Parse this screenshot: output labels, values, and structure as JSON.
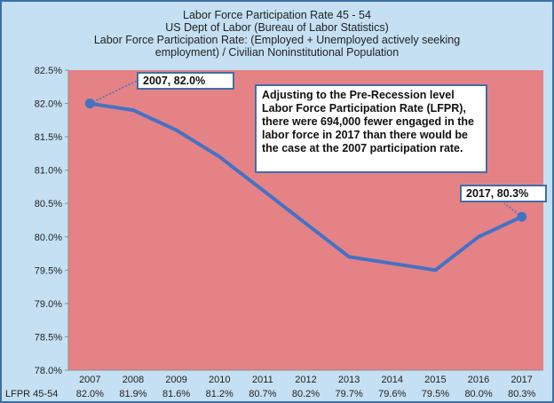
{
  "titles": {
    "line1": "Labor Force Participation Rate 45 - 54",
    "line2": "US Dept of Labor (Bureau of Labor Statistics)",
    "line3": "Labor Force Participation Rate: (Employed + Unemployed actively seeking",
    "line4": "employment) / Civilian Noninstitutional Population"
  },
  "callouts": {
    "start": "2007, 82.0%",
    "end": "2017, 80.3%",
    "annotation": "Adjusting to the Pre-Recession level Labor Force Participation Rate (LFPR), there were 694,000 fewer engaged in the labor force in 2017 than there would be the case at the 2007 participation rate."
  },
  "colors": {
    "frame": "#c5e0f3",
    "plot_area": "#e58285",
    "line": "#4472c4",
    "border": "#3f6fa8"
  },
  "chart_data": {
    "type": "line",
    "categories": [
      "2007",
      "2008",
      "2009",
      "2010",
      "2011",
      "2012",
      "2013",
      "2014",
      "2015",
      "2016",
      "2017"
    ],
    "series": [
      {
        "name": "LFPR 45-54",
        "values": [
          82.0,
          81.9,
          81.6,
          81.2,
          80.7,
          80.2,
          79.7,
          79.6,
          79.5,
          80.0,
          80.3
        ],
        "table_labels": [
          "82.0%",
          "81.9%",
          "81.6%",
          "81.2%",
          "80.7%",
          "80.2%",
          "79.7%",
          "79.6%",
          "79.5%",
          "80.0%",
          "80.3%"
        ]
      }
    ],
    "yticks": [
      "82.5%",
      "82.0%",
      "81.5%",
      "81.0%",
      "80.5%",
      "80.0%",
      "79.5%",
      "79.0%",
      "78.5%",
      "78.0%"
    ],
    "ylim": [
      78.0,
      82.5
    ],
    "grid": false,
    "legend": "none"
  }
}
